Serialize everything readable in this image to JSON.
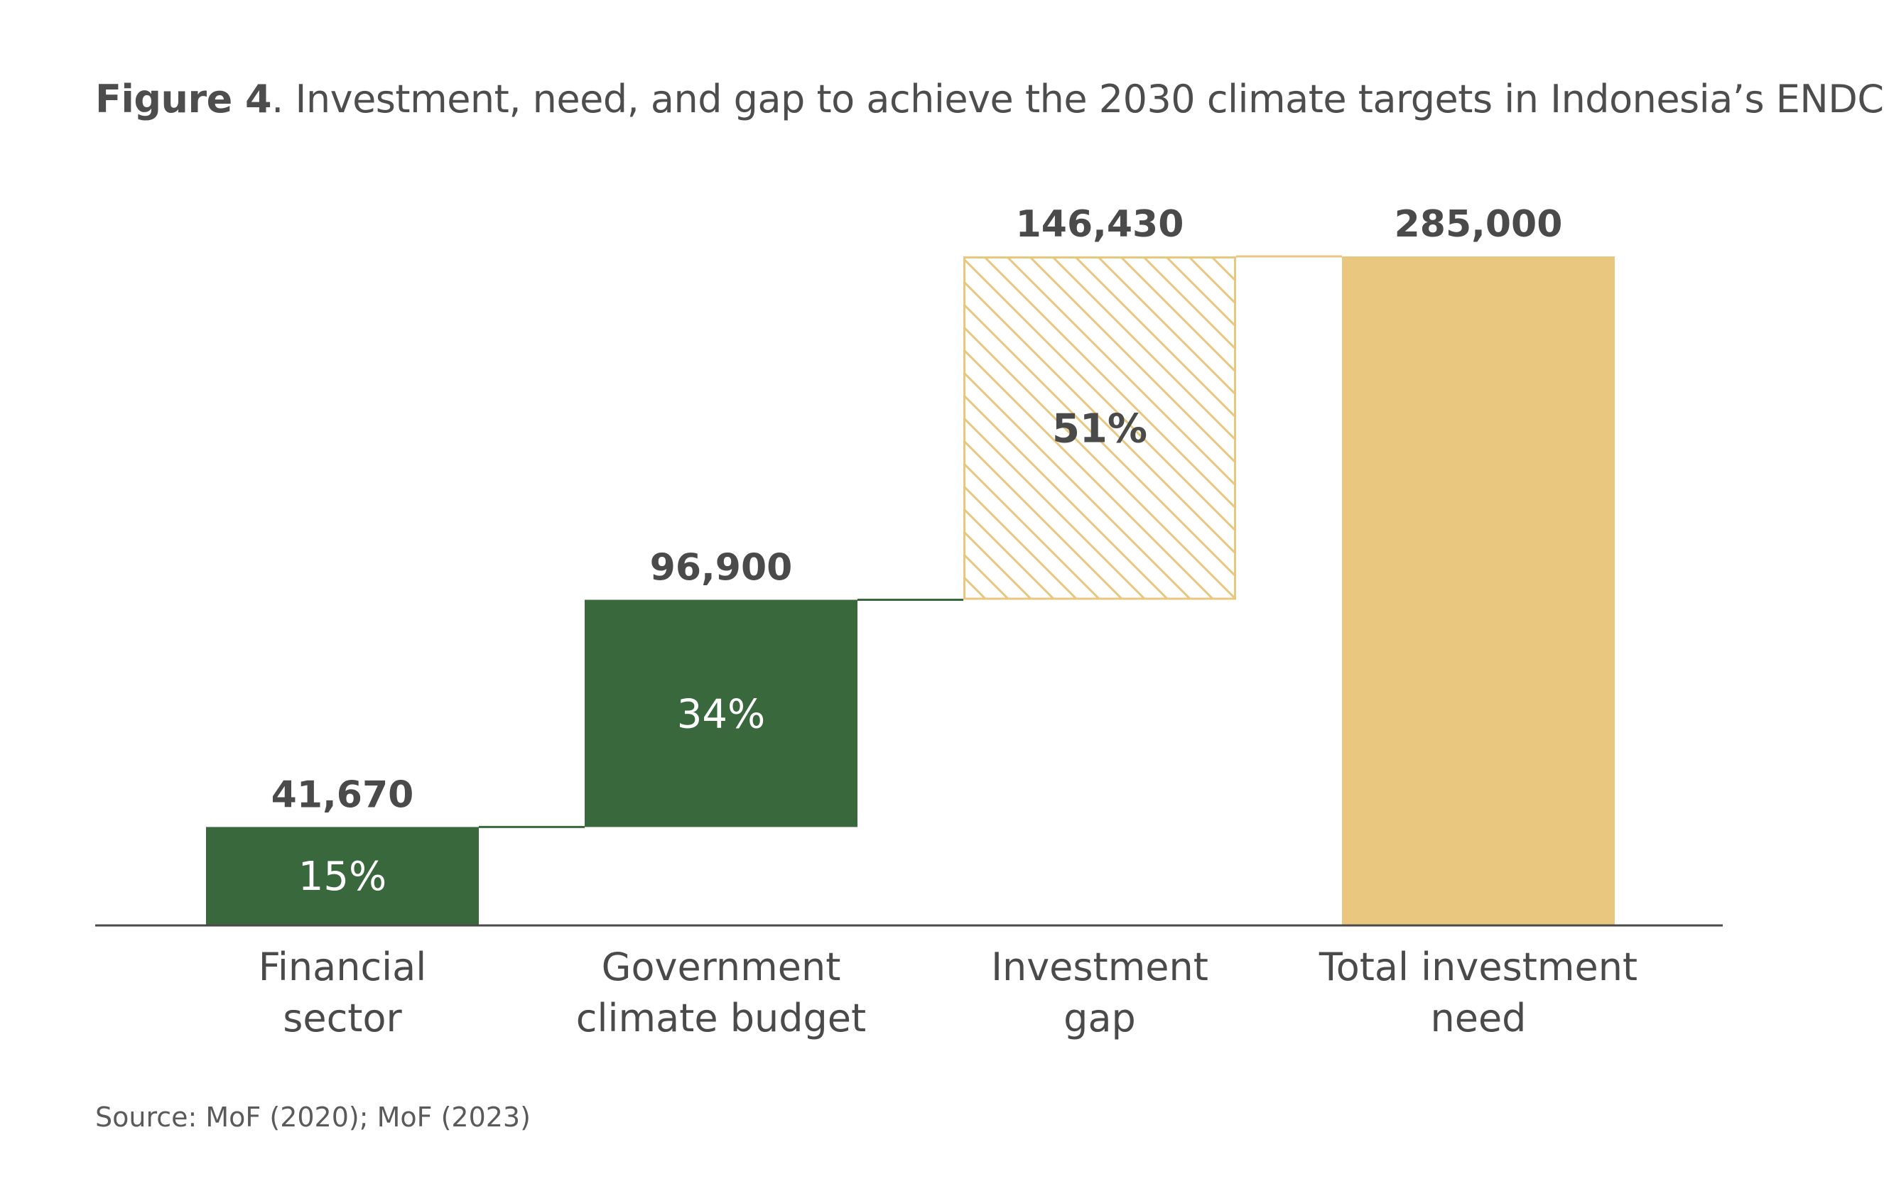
{
  "title": {
    "label": "Figure 4",
    "text": ". Investment, need, and gap to achieve the 2030 climate targets in Indonesia’s ENDC"
  },
  "source": "Source: MoF (2020); MoF (2023)",
  "colors": {
    "investment": "#3a683d",
    "gap_hatch": "#e9c77f",
    "total": "#e9c77f",
    "axis": "#4a4a4a",
    "value_text": "#4a4a4a",
    "pct_text_dark_bar": "#ffffff",
    "pct_text_light_bar": "#4a4a4a"
  },
  "chart_data": {
    "type": "bar",
    "subtype": "waterfall",
    "categories": [
      [
        "Financial",
        "sector"
      ],
      [
        "Government",
        "climate budget"
      ],
      [
        "Investment",
        "gap"
      ],
      [
        "Total investment",
        "need"
      ]
    ],
    "bars": [
      {
        "category": "Financial sector",
        "start": 0,
        "end": 41670,
        "value_label": "41,670",
        "pct_label": "15%",
        "style": "solid-green"
      },
      {
        "category": "Government climate budget",
        "start": 41670,
        "end": 138570,
        "value_label": "96,900",
        "pct_label": "34%",
        "style": "solid-green"
      },
      {
        "category": "Investment gap",
        "start": 138570,
        "end": 285000,
        "value_label": "146,430",
        "pct_label": "51%",
        "style": "hatched-gold"
      },
      {
        "category": "Total investment need",
        "start": 0,
        "end": 285000,
        "value_label": "285,000",
        "pct_label": "",
        "style": "solid-gold"
      }
    ],
    "ylim": [
      0,
      285000
    ],
    "grid": false,
    "legend": "none",
    "xlabel": "",
    "ylabel": ""
  }
}
